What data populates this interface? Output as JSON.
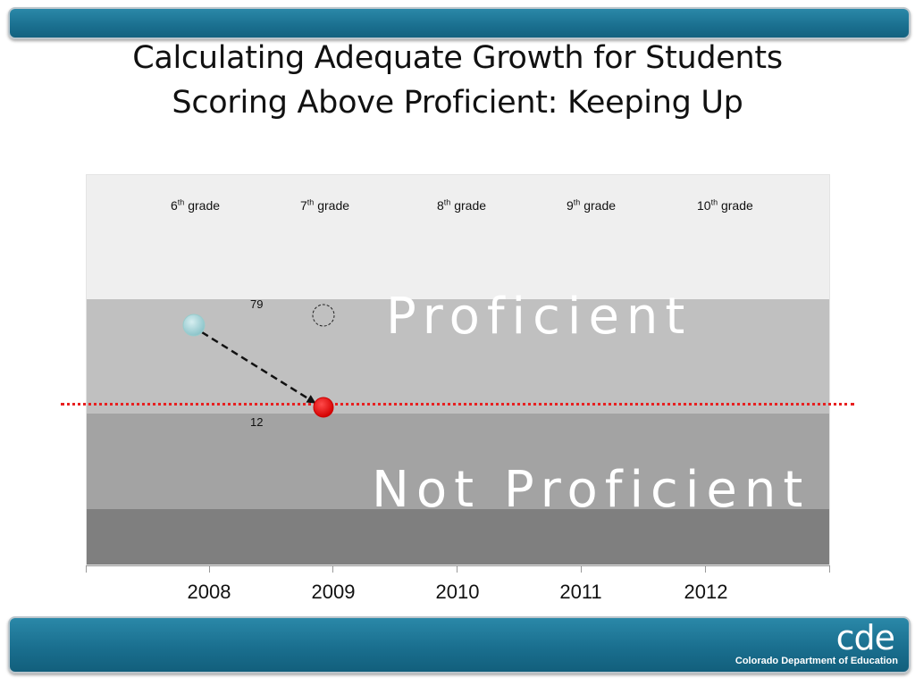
{
  "slide": {
    "title_line1": "Calculating Adequate Growth for Students",
    "title_line2": "Scoring Above Proficient: Keeping Up"
  },
  "chart": {
    "grades": [
      {
        "num": "6",
        "suffix": "th",
        "word": "grade"
      },
      {
        "num": "7",
        "suffix": "th",
        "word": "grade"
      },
      {
        "num": "8",
        "suffix": "th",
        "word": "grade"
      },
      {
        "num": "9",
        "suffix": "th",
        "word": "grade"
      },
      {
        "num": "10",
        "suffix": "th",
        "word": "grade"
      }
    ],
    "years": [
      "2008",
      "2009",
      "2010",
      "2011",
      "2012"
    ],
    "zones": {
      "proficient": "Proficient",
      "not_proficient": "Not Proficient"
    },
    "marks": {
      "upper": "79",
      "lower": "12"
    },
    "colors": {
      "band_top": "#efefef",
      "band_proficient": "#c0c0c0",
      "band_not_proficient": "#a3a3a3",
      "band_bottom": "#7f7f7f",
      "start_point": "#a8d4d8",
      "end_point": "#e60000",
      "cut_line": "#e82020",
      "brand_bar": "#1a6f8f"
    }
  },
  "footer": {
    "logo": "cde",
    "org_name": "Colorado Department of Education"
  }
}
